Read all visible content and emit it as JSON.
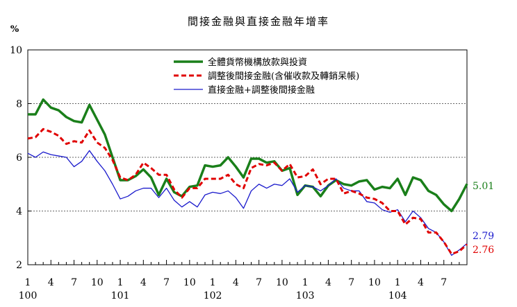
{
  "chart_data": {
    "type": "line",
    "title": "間接金融與直接金融年增率",
    "ylabel": "%",
    "xlabel": "",
    "ylim": [
      2,
      10
    ],
    "yticks": [
      2,
      4,
      6,
      8,
      10
    ],
    "grid": "horizontal dashed at 4, 6, 8",
    "legend_position": "top-center",
    "x_tick_labels": [
      "1",
      "4",
      "7",
      "10",
      "1",
      "4",
      "7",
      "10",
      "1",
      "4",
      "7",
      "10",
      "1",
      "4",
      "7",
      "10",
      "1",
      "4",
      "7"
    ],
    "year_labels": [
      "100",
      "101",
      "102",
      "103",
      "104"
    ],
    "x_start": "100/1",
    "x_end": "104/9",
    "series": [
      {
        "name": "全體貨幣機構放款與投資",
        "color": "#1a7f1a",
        "style": "solid-thick",
        "end_label": "5.01",
        "values": [
          7.6,
          7.6,
          8.15,
          7.85,
          7.75,
          7.5,
          7.35,
          7.3,
          7.95,
          7.4,
          6.85,
          6.0,
          5.15,
          5.15,
          5.3,
          5.55,
          5.25,
          4.6,
          5.2,
          4.7,
          4.55,
          4.9,
          4.95,
          5.7,
          5.65,
          5.7,
          6.0,
          5.65,
          5.25,
          5.95,
          5.95,
          5.8,
          5.85,
          5.5,
          5.6,
          4.6,
          4.95,
          4.9,
          4.55,
          4.95,
          5.15,
          5.0,
          4.95,
          5.1,
          5.15,
          4.8,
          4.9,
          4.85,
          5.2,
          4.6,
          5.25,
          5.15,
          4.75,
          4.6,
          4.25,
          4.0,
          4.45,
          5.01
        ]
      },
      {
        "name": "調整後間接金融(含催收款及轉銷呆帳)",
        "color": "#e00000",
        "style": "dashed-thick",
        "end_label": "2.76",
        "values": [
          6.7,
          6.75,
          7.05,
          6.95,
          6.8,
          6.5,
          6.6,
          6.55,
          7.0,
          6.55,
          6.35,
          5.9,
          5.25,
          5.15,
          5.35,
          5.8,
          5.6,
          5.35,
          5.35,
          4.8,
          4.5,
          4.85,
          4.85,
          5.2,
          5.2,
          5.2,
          5.35,
          5.0,
          4.85,
          5.6,
          5.75,
          5.7,
          5.8,
          5.5,
          5.75,
          5.25,
          5.3,
          5.55,
          5.0,
          5.2,
          5.2,
          4.65,
          4.75,
          4.65,
          4.5,
          4.45,
          4.3,
          4.0,
          4.0,
          3.5,
          3.75,
          3.7,
          3.2,
          3.2,
          2.85,
          2.4,
          2.5,
          2.76
        ]
      },
      {
        "name": "直接金融+調整後間接金融",
        "color": "#1a1acc",
        "style": "solid-thin",
        "end_label": "2.79",
        "values": [
          6.15,
          6.0,
          6.2,
          6.1,
          6.05,
          6.0,
          5.65,
          5.85,
          6.25,
          5.85,
          5.5,
          5.0,
          4.45,
          4.55,
          4.75,
          4.85,
          4.85,
          4.5,
          4.85,
          4.4,
          4.15,
          4.35,
          4.15,
          4.6,
          4.7,
          4.65,
          4.75,
          4.5,
          4.1,
          4.75,
          5.0,
          4.85,
          5.0,
          4.95,
          5.2,
          4.7,
          4.95,
          4.9,
          4.75,
          4.95,
          5.2,
          4.85,
          4.75,
          4.75,
          4.35,
          4.3,
          4.05,
          3.95,
          4.05,
          3.6,
          4.0,
          3.75,
          3.35,
          3.2,
          2.85,
          2.35,
          2.55,
          2.79
        ]
      }
    ]
  }
}
